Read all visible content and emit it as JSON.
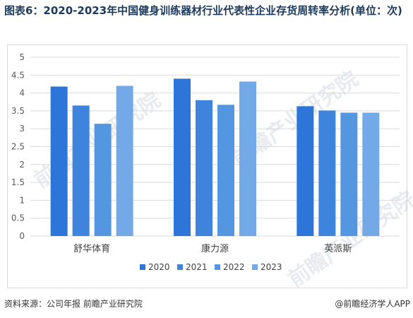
{
  "title": "图表6：2020-2023年中国健身训练器材行业代表性企业存货周转率分析(单位：次)",
  "watermark": "前瞻产业研究院",
  "footer": {
    "source": "资料来源：公司年报 前瞻产业研究院",
    "brand": "@前瞻经济学人APP"
  },
  "chart_data": {
    "type": "bar",
    "categories": [
      "舒华体育",
      "康力源",
      "英派斯"
    ],
    "series": [
      {
        "name": "2020",
        "values": [
          4.18,
          4.4,
          3.63
        ],
        "color": "#2e75d9"
      },
      {
        "name": "2021",
        "values": [
          3.65,
          3.8,
          3.51
        ],
        "color": "#3f84dc"
      },
      {
        "name": "2022",
        "values": [
          3.14,
          3.67,
          3.45
        ],
        "color": "#5596e0"
      },
      {
        "name": "2023",
        "values": [
          4.2,
          4.32,
          3.45
        ],
        "color": "#74a9e8"
      }
    ],
    "yticks": [
      "0",
      "0.5",
      "1",
      "1.5",
      "2",
      "2.5",
      "3",
      "3.5",
      "4",
      "4.5",
      "5"
    ],
    "ylim": [
      0,
      5
    ],
    "grid": true,
    "legend": "bottom"
  }
}
